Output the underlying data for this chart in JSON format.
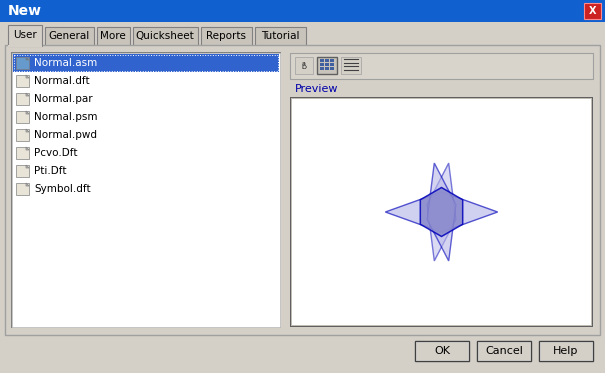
{
  "title_bar_text": "New",
  "title_bar_bg": "#1060d0",
  "dialog_bg": "#d4d0c8",
  "tab_labels": [
    "User",
    "General",
    "More",
    "Quicksheet",
    "Reports",
    "Tutorial"
  ],
  "active_tab": "User",
  "file_list": [
    "Normal.asm",
    "Normal.dft",
    "Normal.par",
    "Normal.psm",
    "Normal.pwd",
    "Pcvo.Dft",
    "Pti.Dft",
    "Symbol.dft"
  ],
  "selected_file": "Normal.asm",
  "preview_label": "Preview",
  "button_labels": [
    "OK",
    "Cancel",
    "Help"
  ],
  "listbox_bg": "#ffffff",
  "preview_box_bg": "#ffffff",
  "close_btn_color": "#cc2222",
  "hex_fill": "#8888cc",
  "outline_color": "#0000bb",
  "plane_fill": "#aaaadd"
}
